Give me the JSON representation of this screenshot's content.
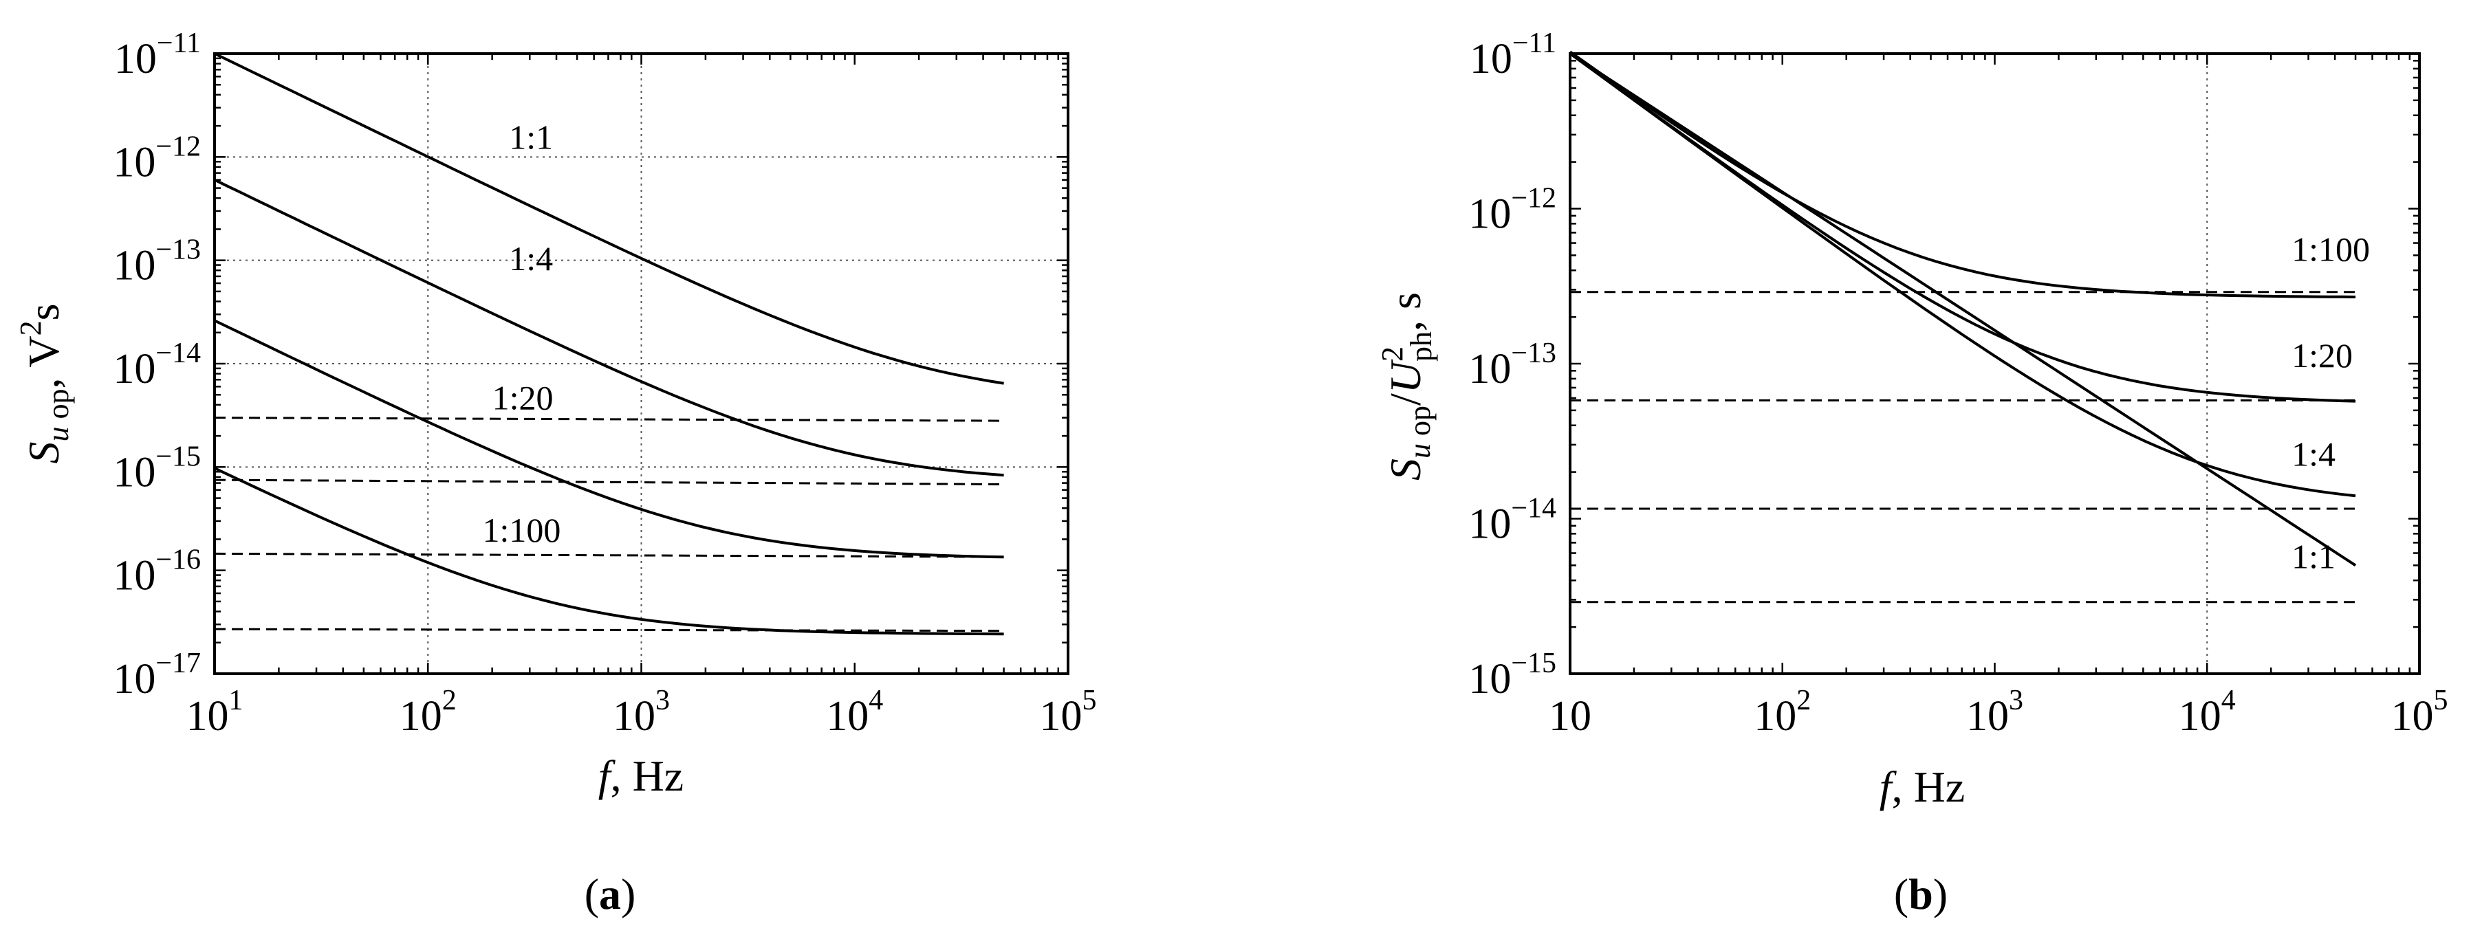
{
  "panels": [
    {
      "panel_label": {
        "open": "(",
        "letter": "a",
        "close": ")"
      },
      "xlabel": {
        "var": "f",
        "rest": ", Hz"
      },
      "ylabel": {
        "main": "S",
        "sub_italic": "u",
        "sub": " op",
        "rest": ", V",
        "sup": "2",
        "tail": "s"
      }
    },
    {
      "panel_label": {
        "open": "(",
        "letter": "b",
        "close": ")"
      },
      "xlabel": {
        "var": "f",
        "rest": ", Hz"
      },
      "ylabel": {
        "main": "S",
        "sub_italic": "u",
        "sub": " op",
        "slash": "/",
        "main2": "U",
        "sup2": "2",
        "sub2": "ph",
        "rest": ", s"
      }
    }
  ],
  "chart_data": [
    {
      "type": "line",
      "title": "",
      "x_scale": "log",
      "y_scale": "log",
      "xlim": [
        10,
        100000
      ],
      "ylim": [
        1e-17,
        1e-11
      ],
      "x_ticks": [
        10,
        100,
        1000,
        10000,
        100000
      ],
      "y_ticks": [
        1e-17,
        1e-16,
        1e-15,
        1e-14,
        1e-13,
        1e-12,
        1e-11
      ],
      "x_tick_labels": [
        {
          "base": "10",
          "exp": "1"
        },
        {
          "base": "10",
          "exp": "2"
        },
        {
          "base": "10",
          "exp": "3"
        },
        {
          "base": "10",
          "exp": "4"
        },
        {
          "base": "10",
          "exp": "5"
        }
      ],
      "y_tick_labels": [
        {
          "base": "10",
          "exp": "−17"
        },
        {
          "base": "10",
          "exp": "−16"
        },
        {
          "base": "10",
          "exp": "−15"
        },
        {
          "base": "10",
          "exp": "−14"
        },
        {
          "base": "10",
          "exp": "−13"
        },
        {
          "base": "10",
          "exp": "−12"
        },
        {
          "base": "10",
          "exp": "−11"
        }
      ],
      "grid": "dotted",
      "grid_x": [
        100,
        1000
      ],
      "grid_y": [
        1e-15,
        1e-14,
        1e-13,
        1e-12
      ],
      "series": [
        {
          "name": "1:1",
          "style": "solid",
          "x": [
            10,
            50000
          ],
          "y": [
            1e-11,
            5e-15
          ]
        },
        {
          "name": "1:4",
          "style": "solid",
          "x": [
            10,
            50000
          ],
          "y": [
            6e-13,
            8e-16
          ]
        },
        {
          "name": "1:20",
          "style": "solid",
          "x": [
            10,
            50000
          ],
          "y": [
            2.6e-14,
            1.45e-16
          ]
        },
        {
          "name": "1:100",
          "style": "solid",
          "x": [
            10,
            50000
          ],
          "y": [
            9.5e-16,
            2.7e-17
          ]
        },
        {
          "style": "dashed",
          "x": [
            10,
            50000
          ],
          "y": [
            3e-15,
            2.8e-15
          ]
        },
        {
          "style": "dashed",
          "x": [
            10,
            50000
          ],
          "y": [
            7.5e-16,
            6.8e-16
          ]
        },
        {
          "style": "dashed",
          "x": [
            10,
            50000
          ],
          "y": [
            1.45e-16,
            1.35e-16
          ]
        },
        {
          "style": "dashed",
          "x": [
            10,
            50000
          ],
          "y": [
            2.7e-17,
            2.6e-17
          ]
        }
      ],
      "annotations": [
        {
          "text": "1:1",
          "x": 240,
          "y": 1.2e-12
        },
        {
          "text": "1:4",
          "x": 240,
          "y": 8e-14
        },
        {
          "text": "1:20",
          "x": 200,
          "y": 3.6e-15
        },
        {
          "text": "1:100",
          "x": 180,
          "y": 1.9e-16
        }
      ]
    },
    {
      "type": "line",
      "title": "",
      "x_scale": "log",
      "y_scale": "log",
      "xlim": [
        10,
        100000
      ],
      "ylim": [
        1e-15,
        1e-11
      ],
      "x_ticks": [
        10,
        100,
        1000,
        10000,
        100000
      ],
      "y_ticks": [
        1e-15,
        1e-14,
        1e-13,
        1e-12,
        1e-11
      ],
      "x_tick_labels": [
        {
          "base": "10",
          "exp": ""
        },
        {
          "base": "10",
          "exp": "2"
        },
        {
          "base": "10",
          "exp": "3"
        },
        {
          "base": "10",
          "exp": "4"
        },
        {
          "base": "10",
          "exp": "5"
        }
      ],
      "y_tick_labels": [
        {
          "base": "10",
          "exp": "−15"
        },
        {
          "base": "10",
          "exp": "−14"
        },
        {
          "base": "10",
          "exp": "−13"
        },
        {
          "base": "10",
          "exp": "−12"
        },
        {
          "base": "10",
          "exp": "−11"
        }
      ],
      "grid": "dotted",
      "grid_x": [
        10000
      ],
      "grid_y": [],
      "series": [
        {
          "name": "1:1",
          "style": "solid",
          "x": [
            10,
            50000
          ],
          "y": [
            1e-11,
            5e-15
          ]
        },
        {
          "name": "1:4",
          "style": "solid",
          "x": [
            10,
            50000
          ],
          "y": [
            1e-11,
            1.35e-14
          ]
        },
        {
          "name": "1:20",
          "style": "solid",
          "x": [
            10,
            50000
          ],
          "y": [
            1e-11,
            6.2e-14
          ]
        },
        {
          "name": "1:100",
          "style": "solid",
          "x": [
            10,
            50000
          ],
          "y": [
            1e-11,
            3e-13
          ]
        },
        {
          "style": "dashed",
          "x": [
            10,
            50000
          ],
          "y": [
            2.9e-13,
            2.9e-13
          ]
        },
        {
          "style": "dashed",
          "x": [
            10,
            50000
          ],
          "y": [
            5.8e-14,
            5.8e-14
          ]
        },
        {
          "style": "dashed",
          "x": [
            10,
            50000
          ],
          "y": [
            1.16e-14,
            1.16e-14
          ]
        },
        {
          "style": "dashed",
          "x": [
            10,
            50000
          ],
          "y": [
            2.9e-15,
            2.9e-15
          ]
        }
      ],
      "annotations": [
        {
          "text": "1:100",
          "x": 25000,
          "y": 4.6e-13
        },
        {
          "text": "1:20",
          "x": 25000,
          "y": 9.5e-14
        },
        {
          "text": "1:4",
          "x": 25000,
          "y": 2.2e-14
        },
        {
          "text": "1:1",
          "x": 25000,
          "y": 4.8e-15
        }
      ]
    }
  ]
}
